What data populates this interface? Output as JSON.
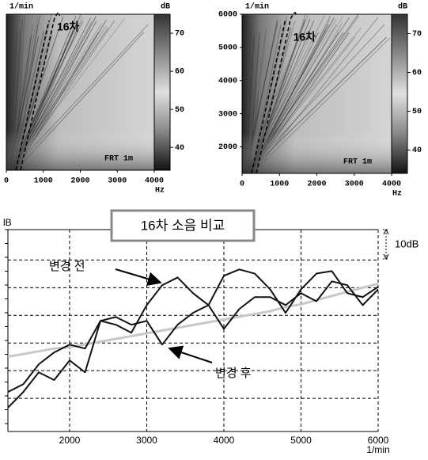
{
  "chart_data": [
    {
      "type": "spectrogram",
      "ylabel": "1/min",
      "colorbar_label": "dB",
      "annotation": "16차",
      "note": "FRT 1m",
      "xlim": [
        0,
        4000
      ],
      "xticks": [
        0,
        1000,
        2000,
        3000,
        4000
      ],
      "xlabel": "Hz",
      "clim": [
        34,
        75
      ],
      "cticks": [
        40,
        50,
        60,
        70
      ]
    },
    {
      "type": "spectrogram",
      "ylabel": "1/min",
      "colorbar_label": "dB",
      "annotation": "16차",
      "note": "FRT 1m",
      "xlim": [
        0,
        4000
      ],
      "xticks": [
        0,
        1000,
        2000,
        3000,
        4000
      ],
      "xlabel": "Hz",
      "ylim": [
        1200,
        6000
      ],
      "yticks": [
        2000,
        3000,
        4000,
        5000,
        6000
      ],
      "clim": [
        34,
        75
      ],
      "cticks": [
        40,
        50,
        60,
        70
      ]
    },
    {
      "type": "line",
      "title": "16차 소음 비교",
      "ylabel": "lB",
      "xlabel": "1/min",
      "scale_note": "10dB",
      "x": [
        1200,
        1400,
        1600,
        1800,
        2000,
        2200,
        2400,
        2600,
        2800,
        3000,
        3200,
        3400,
        3600,
        3800,
        4000,
        4200,
        4400,
        4600,
        4800,
        5000,
        5200,
        5400,
        5600,
        5800,
        6000
      ],
      "series": [
        {
          "name": "변경 전",
          "color": "#111111",
          "values": [
            12.3,
            15.1,
            22.3,
            26.6,
            29.4,
            28,
            38,
            36.6,
            33.7,
            43.7,
            50.9,
            53.7,
            48,
            43.7,
            54.3,
            56.6,
            55.1,
            49.4,
            40.9,
            49.4,
            55.1,
            56,
            48,
            46.6,
            50.3
          ]
        },
        {
          "name": "변경 후",
          "color": "#111111",
          "values": [
            6.6,
            12.3,
            19.4,
            16.6,
            23.7,
            19.4,
            38,
            39.4,
            36.6,
            38,
            29.4,
            36.6,
            40.9,
            43.7,
            35.1,
            42.3,
            46.6,
            46.6,
            43.7,
            48,
            45.1,
            52.3,
            50.9,
            43.7,
            49.4
          ]
        },
        {
          "color": "#c8c8c8",
          "values": [
            25.1,
            26,
            27,
            28,
            28.5,
            29.5,
            30.5,
            31.5,
            32.5,
            33.5,
            34.5,
            35.5,
            36.5,
            37.5,
            38.5,
            39.5,
            40.5,
            41.5,
            43,
            44,
            45.5,
            47,
            48.5,
            50,
            51.4
          ]
        }
      ],
      "xlim": [
        1200,
        6000
      ],
      "xticks": [
        2000,
        3000,
        4000,
        5000,
        6000
      ],
      "ylim": [
        -2,
        71
      ],
      "ygrid": [
        10,
        20,
        30,
        40,
        50,
        60
      ],
      "grid": true
    }
  ]
}
